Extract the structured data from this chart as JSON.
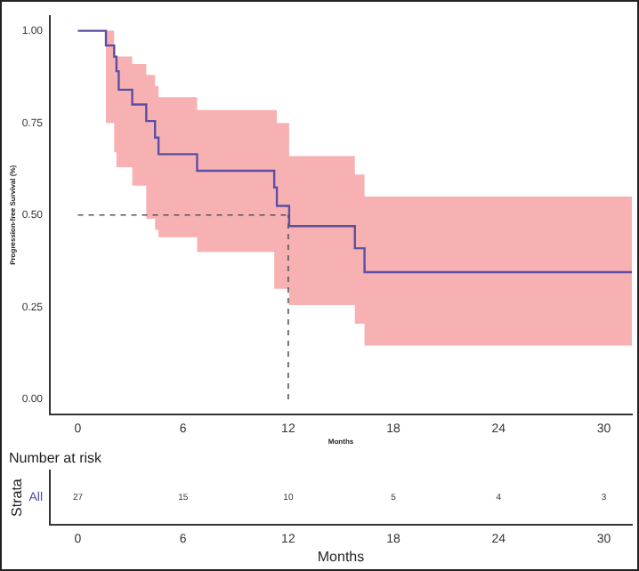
{
  "chart_data": [
    {
      "type": "step",
      "ylabel": "Progression-free Survival (%)",
      "xlabel": "Months",
      "series": [
        {
          "color": "#5b4ea6",
          "x": [
            0,
            1.6,
            2.07,
            2.2,
            2.33,
            3.1,
            3.9,
            4.4,
            4.6,
            6.8,
            11.2,
            11.35,
            12.05,
            15.8,
            16.35,
            31.6
          ],
          "values": [
            1,
            0.96,
            0.93,
            0.89,
            0.84,
            0.8,
            0.755,
            0.71,
            0.665,
            0.62,
            0.575,
            0.525,
            0.47,
            0.41,
            0.345,
            0.345
          ],
          "lower": [
            1,
            0.75,
            0.67,
            0.63,
            0.63,
            0.58,
            0.49,
            0.46,
            0.44,
            0.4,
            0.3,
            0.3,
            0.256,
            0.205,
            0.146,
            0.146
          ],
          "upper": [
            1,
            1,
            0.93,
            0.93,
            0.93,
            0.91,
            0.88,
            0.85,
            0.82,
            0.785,
            0.785,
            0.75,
            0.66,
            0.61,
            0.55,
            0.55
          ]
        }
      ],
      "ref_lines": [
        {
          "axis": "y",
          "value": 0.5,
          "line_style": "dashed"
        },
        {
          "axis": "x",
          "value": 12,
          "line_style": "dashed"
        }
      ],
      "xlim": [
        -1.6,
        31.6
      ],
      "xticks": [
        0,
        6,
        12,
        18,
        24,
        30
      ],
      "ylim": [
        -0.04,
        1.04
      ],
      "yticks": [
        {
          "value": 0,
          "label": "0.00"
        },
        {
          "value": 0.25,
          "label": "0.25"
        },
        {
          "value": 0.5,
          "label": "0.50"
        },
        {
          "value": 0.75,
          "label": "0.75"
        },
        {
          "value": 1,
          "label": "1.00"
        }
      ],
      "grid": false,
      "legend": false
    },
    {
      "type": "heatmap",
      "title": "Number at risk",
      "xlabel": "Months",
      "ylabel": "Strata",
      "y_categories": [
        "All"
      ],
      "categories": [
        "0",
        "6",
        "12",
        "18",
        "24",
        "30"
      ],
      "cells": [
        [
          27,
          15,
          10,
          5,
          4,
          3
        ]
      ],
      "data_labels": true
    }
  ]
}
